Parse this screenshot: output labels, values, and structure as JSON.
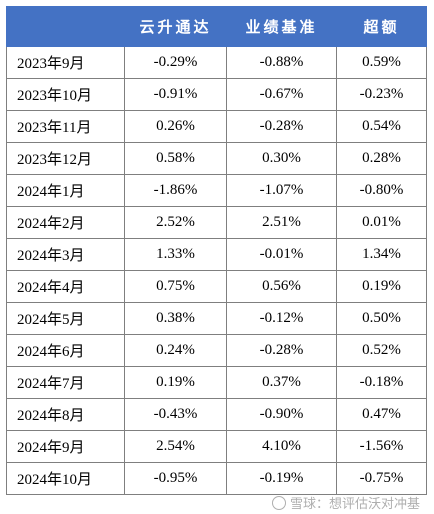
{
  "table": {
    "headers": [
      "",
      "云升通达",
      "业绩基准",
      "超额"
    ],
    "rows": [
      {
        "month": "2023年9月",
        "fund": "-0.29%",
        "benchmark": "-0.88%",
        "excess": "0.59%"
      },
      {
        "month": "2023年10月",
        "fund": "-0.91%",
        "benchmark": "-0.67%",
        "excess": "-0.23%"
      },
      {
        "month": "2023年11月",
        "fund": "0.26%",
        "benchmark": "-0.28%",
        "excess": "0.54%"
      },
      {
        "month": "2023年12月",
        "fund": "0.58%",
        "benchmark": "0.30%",
        "excess": "0.28%"
      },
      {
        "month": "2024年1月",
        "fund": "-1.86%",
        "benchmark": "-1.07%",
        "excess": "-0.80%"
      },
      {
        "month": "2024年2月",
        "fund": "2.52%",
        "benchmark": "2.51%",
        "excess": "0.01%"
      },
      {
        "month": "2024年3月",
        "fund": "1.33%",
        "benchmark": "-0.01%",
        "excess": "1.34%"
      },
      {
        "month": "2024年4月",
        "fund": "0.75%",
        "benchmark": "0.56%",
        "excess": "0.19%"
      },
      {
        "month": "2024年5月",
        "fund": "0.38%",
        "benchmark": "-0.12%",
        "excess": "0.50%"
      },
      {
        "month": "2024年6月",
        "fund": "0.24%",
        "benchmark": "-0.28%",
        "excess": "0.52%"
      },
      {
        "month": "2024年7月",
        "fund": "0.19%",
        "benchmark": "0.37%",
        "excess": "-0.18%"
      },
      {
        "month": "2024年8月",
        "fund": "-0.43%",
        "benchmark": "-0.90%",
        "excess": "0.47%"
      },
      {
        "month": "2024年9月",
        "fund": "2.54%",
        "benchmark": "4.10%",
        "excess": "-1.56%"
      },
      {
        "month": "2024年10月",
        "fund": "-0.95%",
        "benchmark": "-0.19%",
        "excess": "-0.75%"
      }
    ]
  },
  "watermark": {
    "text": "雪球：想评估沃对冲基",
    "icon": "snowball-logo-icon"
  },
  "colors": {
    "header_bg": "#4472c4",
    "header_text": "#ffffff",
    "border": "#7f7f7f"
  }
}
